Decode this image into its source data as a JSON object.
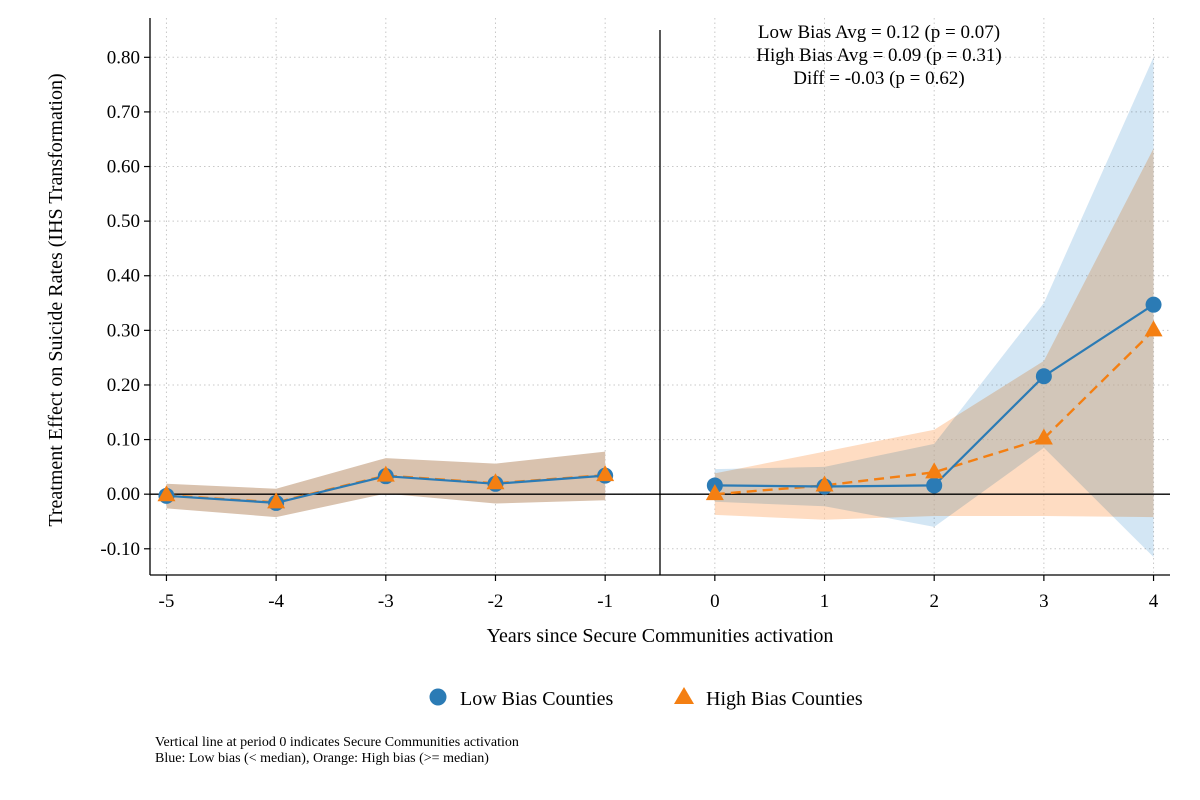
{
  "chart_data": {
    "type": "line",
    "xlabel": "Years since Secure Communities activation",
    "ylabel": "Treatment Effect on Suicide Rates (IHS Transformation)",
    "x": [
      -5,
      -4,
      -3,
      -2,
      -1,
      0,
      1,
      2,
      3,
      4
    ],
    "x_ticks": [
      "-5",
      "-4",
      "-3",
      "-2",
      "-1",
      "0",
      "1",
      "2",
      "3",
      "4"
    ],
    "xlim": [
      -5.15,
      4.15
    ],
    "ylim": [
      -0.148,
      0.85
    ],
    "y_ticks": [
      "-0.10",
      "0.00",
      "0.10",
      "0.20",
      "0.30",
      "0.40",
      "0.50",
      "0.60",
      "0.70",
      "0.80"
    ],
    "y_tick_values": [
      -0.1,
      0.0,
      0.1,
      0.2,
      0.3,
      0.4,
      0.5,
      0.6,
      0.7,
      0.8
    ],
    "grid": true,
    "zero_line": 0,
    "vertical_line_at": -0.5,
    "series": [
      {
        "name": "Low Bias Counties",
        "color": "#2b7bb5",
        "band_color": "#a8cde9",
        "marker": "circle",
        "line_style": "solid",
        "pre": {
          "x": [
            -5,
            -4,
            -3,
            -2,
            -1
          ],
          "y": [
            -0.003,
            -0.016,
            0.033,
            0.019,
            0.034
          ],
          "lower": [
            -0.026,
            -0.042,
            0.001,
            -0.017,
            -0.011
          ],
          "upper": [
            0.019,
            0.01,
            0.066,
            0.056,
            0.078
          ]
        },
        "post": {
          "x": [
            0,
            1,
            2,
            3,
            4
          ],
          "y": [
            0.016,
            0.014,
            0.016,
            0.216,
            0.347
          ],
          "lower": [
            -0.014,
            -0.022,
            -0.06,
            0.085,
            -0.115
          ],
          "upper": [
            0.046,
            0.05,
            0.092,
            0.35,
            0.8
          ]
        }
      },
      {
        "name": "High Bias Counties",
        "color": "#f47f12",
        "band_color": "#fdc59a",
        "marker": "triangle",
        "line_style": "dashed",
        "pre": {
          "x": [
            -5,
            -4,
            -3,
            -2,
            -1
          ],
          "y": [
            -0.002,
            -0.015,
            0.034,
            0.02,
            0.035
          ],
          "lower": [
            -0.026,
            -0.042,
            0.001,
            -0.017,
            -0.011
          ],
          "upper": [
            0.019,
            0.01,
            0.066,
            0.056,
            0.078
          ]
        },
        "post": {
          "x": [
            0,
            1,
            2,
            3,
            4
          ],
          "y": [
            0.0,
            0.016,
            0.04,
            0.102,
            0.3
          ],
          "lower": [
            -0.038,
            -0.047,
            -0.04,
            -0.04,
            -0.042
          ],
          "upper": [
            0.038,
            0.078,
            0.118,
            0.244,
            0.633
          ]
        }
      }
    ],
    "annotations": [
      "Low Bias Avg = 0.12 (p = 0.07)",
      "High Bias Avg = 0.09 (p = 0.31)",
      "Diff = -0.03 (p = 0.62)"
    ],
    "legend": {
      "placement": "bottom",
      "items": [
        "Low Bias Counties",
        "High Bias Counties"
      ]
    },
    "notes": [
      "Vertical line at period 0 indicates Secure Communities activation",
      "Blue: Low bias (< median), Orange: High bias (>= median)"
    ]
  }
}
